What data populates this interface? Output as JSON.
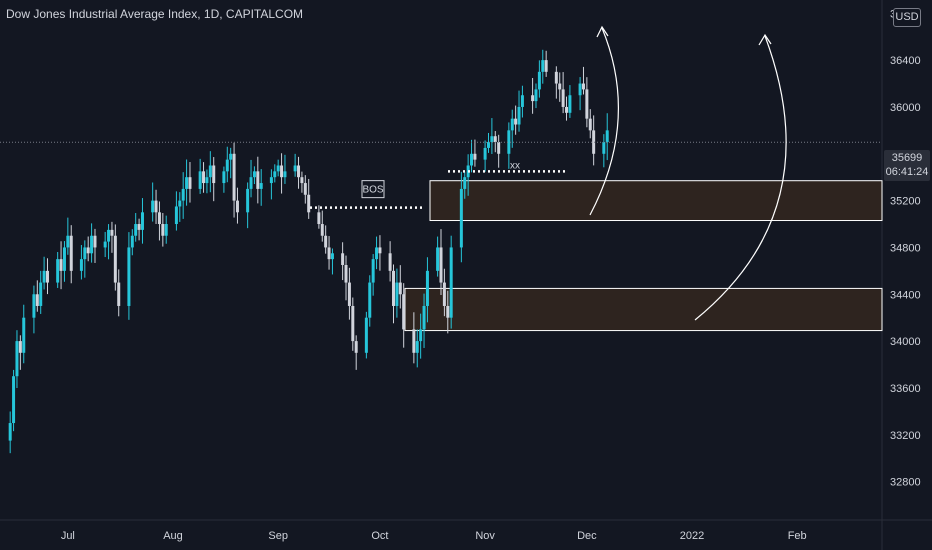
{
  "header": {
    "title": "Dow Jones Industrial Average Index, 1D, CAPITALCOM"
  },
  "currency_badge": "USD",
  "last_price": {
    "value": "35699",
    "countdown": "06:41:24"
  },
  "colors": {
    "background": "#131722",
    "up": "#26c6da",
    "down": "#d1d4dc",
    "zone_fill": "#2e241f",
    "zone_border": "#ffffff"
  },
  "chart_data": {
    "type": "candlestick",
    "ylim": [
      32600,
      36700
    ],
    "y_ticks": [
      32800,
      33200,
      33600,
      34000,
      34400,
      34800,
      35200,
      35600,
      36000,
      36400,
      36800
    ],
    "x_tick_labels": [
      {
        "label": "Jul",
        "date": "2021-07-01"
      },
      {
        "label": "Aug",
        "date": "2021-08-01"
      },
      {
        "label": "Sep",
        "date": "2021-09-01"
      },
      {
        "label": "Oct",
        "date": "2021-10-01"
      },
      {
        "label": "Nov",
        "date": "2021-11-01"
      },
      {
        "label": "Dec",
        "date": "2021-12-01"
      },
      {
        "label": "2022",
        "date": "2022-01-01"
      },
      {
        "label": "Feb",
        "date": "2022-02-01"
      }
    ],
    "x_range": [
      "2021-06-11",
      "2022-02-26"
    ],
    "closes": [
      33300,
      33700,
      34000,
      33900,
      34200,
      34400,
      34300,
      34500,
      34600,
      34500,
      34700,
      34600,
      34800,
      34900,
      34600,
      34700,
      34800,
      34750,
      34900,
      34800,
      34850,
      34950,
      34900,
      34500,
      34300,
      34800,
      34900,
      35000,
      34950,
      35100,
      35200,
      35100,
      35000,
      34900,
      35000,
      35150,
      35200,
      35300,
      35400,
      35300,
      35450,
      35350,
      35400,
      35500,
      35350,
      35450,
      35550,
      35600,
      35200,
      35100,
      35300,
      35400,
      35450,
      35300,
      35350,
      35400,
      35450,
      35500,
      35400,
      35450,
      35500,
      35400,
      35350,
      35250,
      35100,
      35000,
      34900,
      34800,
      34700,
      34750,
      34650,
      34500,
      34300,
      34000,
      33900,
      34200,
      34500,
      34700,
      34800,
      34750,
      34600,
      34300,
      34500,
      34400,
      34100,
      33900,
      34000,
      34100,
      34300,
      34600,
      34800,
      34500,
      34300,
      34200,
      34800,
      35300,
      35400,
      35500,
      35600,
      35550,
      35650,
      35700,
      35750,
      35700,
      35600,
      35800,
      35900,
      35850,
      36000,
      36100,
      36050,
      36150,
      36300,
      36400,
      36300,
      36200,
      36150,
      36000,
      35950,
      36100,
      36200,
      36150,
      35900,
      35800,
      35600,
      35700,
      35800
    ],
    "horizontal_levels": [
      {
        "label": "BOS",
        "price": 35140
      },
      {
        "label": "xx",
        "price": 35450
      }
    ],
    "zones": [
      {
        "top": 35370,
        "bottom": 35030
      },
      {
        "top": 34450,
        "bottom": 34090
      }
    ]
  }
}
